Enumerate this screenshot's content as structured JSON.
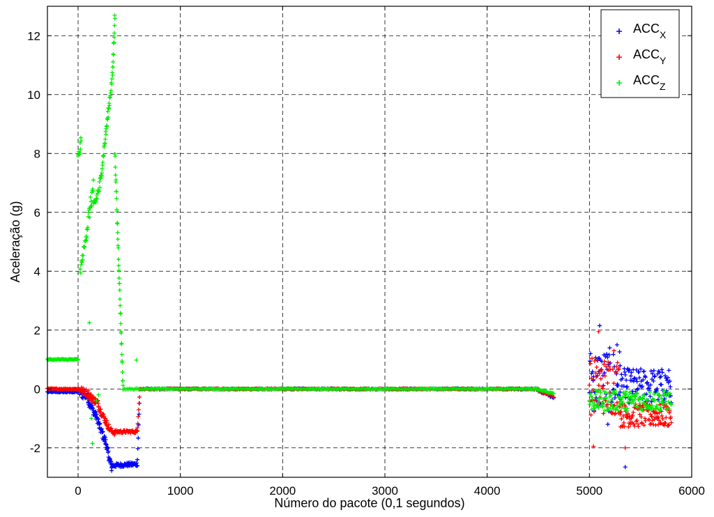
{
  "chart_data": {
    "type": "scatter",
    "title": "",
    "xlabel": "Número do pacote (0,1 segundos)",
    "ylabel": "Aceleração (g)",
    "xlim": [
      -300,
      6000
    ],
    "ylim": [
      -3,
      13
    ],
    "xticks": [
      0,
      1000,
      2000,
      3000,
      4000,
      5000,
      6000
    ],
    "xtick_labels": [
      "0",
      "1000",
      "2000",
      "3000",
      "4000",
      "5000",
      "6000"
    ],
    "yticks": [
      -2,
      0,
      2,
      4,
      6,
      8,
      10,
      12
    ],
    "ytick_labels": [
      "-2",
      "0",
      "2",
      "4",
      "6",
      "8",
      "10",
      "12"
    ],
    "grid": true,
    "legend_position": "top-right",
    "marker": "+",
    "series": [
      {
        "name": "ACC",
        "subscript": "X",
        "color": "#0000ff",
        "segments": [
          {
            "x": [
              -300,
              0
            ],
            "y": [
              -0.1,
              -0.1
            ],
            "noise": 0.02,
            "n": 40
          },
          {
            "x": [
              0,
              100
            ],
            "y": [
              -0.1,
              -0.3
            ],
            "noise": 0.15,
            "n": 20
          },
          {
            "x": [
              100,
              200
            ],
            "y": [
              -0.4,
              -1.1
            ],
            "noise": 0.15,
            "n": 30
          },
          {
            "x": [
              200,
              280
            ],
            "y": [
              -1.2,
              -1.9
            ],
            "noise": 0.15,
            "n": 25
          },
          {
            "x": [
              280,
              330
            ],
            "y": [
              -2.0,
              -2.7
            ],
            "noise": 0.15,
            "n": 20
          },
          {
            "x": [
              330,
              580
            ],
            "y": [
              -2.6,
              -2.55
            ],
            "noise": 0.07,
            "n": 60
          },
          {
            "x": [
              580,
              600
            ],
            "y": [
              -2.4,
              -0.5
            ],
            "noise": 0.1,
            "n": 6
          },
          {
            "x": [
              600,
              4500
            ],
            "y": [
              0.0,
              0.0
            ],
            "noise": 0.02,
            "n": 300
          },
          {
            "x": [
              4500,
              4650
            ],
            "y": [
              -0.05,
              -0.3
            ],
            "noise": 0.03,
            "n": 15
          },
          {
            "x": [
              5000,
              5300
            ],
            "y": [
              0.3,
              0.3
            ],
            "noise": 1.1,
            "n": 60
          },
          {
            "x": [
              5300,
              5800
            ],
            "y": [
              0.1,
              0.1
            ],
            "noise": 0.6,
            "n": 110
          }
        ],
        "points": [
          [
            5100,
            2.15
          ],
          [
            5350,
            -2.65
          ],
          [
            5180,
            -1.2
          ],
          [
            5270,
            1.5
          ]
        ]
      },
      {
        "name": "ACC",
        "subscript": "Y",
        "color": "#ff0000",
        "segments": [
          {
            "x": [
              -300,
              0
            ],
            "y": [
              0.0,
              0.0
            ],
            "noise": 0.02,
            "n": 40
          },
          {
            "x": [
              0,
              100
            ],
            "y": [
              0.0,
              -0.15
            ],
            "noise": 0.12,
            "n": 20
          },
          {
            "x": [
              100,
              200
            ],
            "y": [
              -0.2,
              -0.5
            ],
            "noise": 0.12,
            "n": 30
          },
          {
            "x": [
              200,
              300
            ],
            "y": [
              -0.6,
              -1.3
            ],
            "noise": 0.12,
            "n": 30
          },
          {
            "x": [
              300,
              360
            ],
            "y": [
              -1.35,
              -1.5
            ],
            "noise": 0.08,
            "n": 15
          },
          {
            "x": [
              360,
              580
            ],
            "y": [
              -1.45,
              -1.45
            ],
            "noise": 0.05,
            "n": 50
          },
          {
            "x": [
              580,
              600
            ],
            "y": [
              -1.3,
              -0.2
            ],
            "noise": 0.1,
            "n": 6
          },
          {
            "x": [
              600,
              4500
            ],
            "y": [
              0.0,
              0.0
            ],
            "noise": 0.02,
            "n": 300
          },
          {
            "x": [
              4500,
              4650
            ],
            "y": [
              -0.05,
              -0.25
            ],
            "noise": 0.03,
            "n": 15
          },
          {
            "x": [
              5000,
              5300
            ],
            "y": [
              0.1,
              0.1
            ],
            "noise": 1.0,
            "n": 60
          },
          {
            "x": [
              5300,
              5800
            ],
            "y": [
              -0.9,
              -0.9
            ],
            "noise": 0.4,
            "n": 110
          }
        ],
        "points": [
          [
            5090,
            1.95
          ],
          [
            5040,
            -1.95
          ],
          [
            5350,
            -2.0
          ],
          [
            5240,
            1.3
          ]
        ]
      },
      {
        "name": "ACC",
        "subscript": "Z",
        "color": "#00ee00",
        "segments": [
          {
            "x": [
              -300,
              0
            ],
            "y": [
              1.0,
              1.0
            ],
            "noise": 0.02,
            "n": 40
          },
          {
            "x": [
              0,
              30
            ],
            "y": [
              7.8,
              8.4
            ],
            "noise": 0.2,
            "n": 10
          },
          {
            "x": [
              20,
              80
            ],
            "y": [
              4.0,
              5.2
            ],
            "noise": 0.15,
            "n": 15
          },
          {
            "x": [
              80,
              150
            ],
            "y": [
              5.3,
              6.9
            ],
            "noise": 0.3,
            "n": 20
          },
          {
            "x": [
              150,
              220
            ],
            "y": [
              6.1,
              7.0
            ],
            "noise": 0.25,
            "n": 20
          },
          {
            "x": [
              220,
              340
            ],
            "y": [
              7.1,
              10.8
            ],
            "noise": 0.15,
            "n": 40
          },
          {
            "x": [
              340,
              360
            ],
            "y": [
              11.0,
              12.7
            ],
            "noise": 0.2,
            "n": 12
          },
          {
            "x": [
              360,
              440
            ],
            "y": [
              8.0,
              0.0
            ],
            "noise": 0.15,
            "n": 40
          },
          {
            "x": [
              440,
              4500
            ],
            "y": [
              0.0,
              0.0
            ],
            "noise": 0.02,
            "n": 320
          },
          {
            "x": [
              4500,
              4650
            ],
            "y": [
              -0.02,
              -0.15
            ],
            "noise": 0.03,
            "n": 15
          },
          {
            "x": [
              5000,
              5800
            ],
            "y": [
              -0.4,
              -0.4
            ],
            "noise": 0.35,
            "n": 150
          }
        ],
        "points": [
          [
            110,
            2.25
          ],
          [
            130,
            -1.0
          ],
          [
            140,
            -1.85
          ],
          [
            180,
            -0.4
          ],
          [
            570,
            0.98
          ],
          [
            200,
            -0.2
          ]
        ]
      }
    ]
  }
}
